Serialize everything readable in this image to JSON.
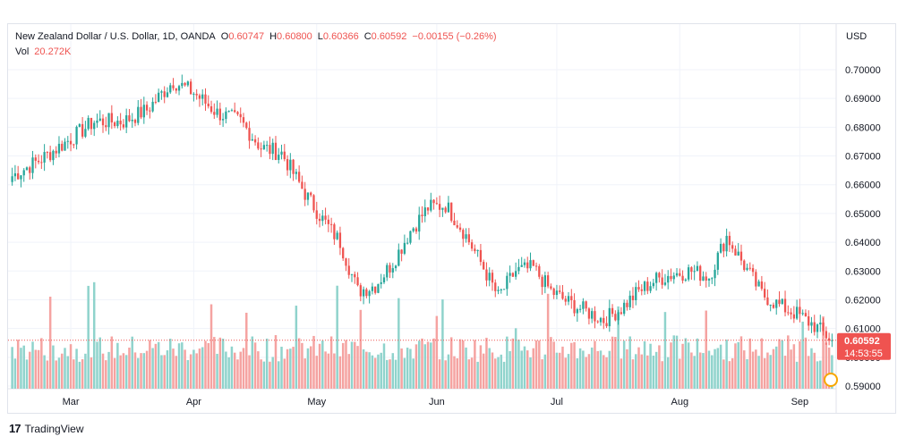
{
  "header": {
    "symbol": "New Zealand Dollar / U.S. Dollar, 1D, OANDA",
    "open_label": "O",
    "open": "0.60747",
    "high_label": "H",
    "high": "0.60800",
    "low_label": "L",
    "low": "0.60366",
    "close_label": "C",
    "close": "0.60592",
    "change": "−0.00155 (−0.26%)",
    "vol_label": "Vol",
    "vol": "20.272K"
  },
  "currency": "USD",
  "last_price_badge": {
    "price": "0.60592",
    "countdown": "14:53:55"
  },
  "brand": {
    "icon": "tradingview-logo-icon",
    "name": "TradingView"
  },
  "colors": {
    "up": "#26a69a",
    "down": "#ef5350",
    "up_vol": "#8fd3cc",
    "down_vol": "#f5a3a1",
    "grid": "#f0f3fa",
    "text": "#131722"
  },
  "chart_data": {
    "type": "candlestick",
    "title": "New Zealand Dollar / U.S. Dollar, 1D, OANDA",
    "y_axis": {
      "side": "right",
      "unit": "USD",
      "ticks": [
        "0.70000",
        "0.69000",
        "0.68000",
        "0.67000",
        "0.66000",
        "0.65000",
        "0.64000",
        "0.63000",
        "0.62000",
        "0.61000",
        "0.60000",
        "0.59000"
      ],
      "range": [
        0.5895,
        0.7045
      ]
    },
    "x_axis": {
      "months": [
        "Mar",
        "Apr",
        "May",
        "Jun",
        "Jul",
        "Aug",
        "Sep"
      ],
      "month_start_index": [
        20,
        62,
        104,
        145,
        186,
        228,
        269
      ],
      "count": 281
    },
    "grid": true,
    "last_close": 0.60592,
    "anchors": [
      [
        0,
        0.663
      ],
      [
        10,
        0.669
      ],
      [
        20,
        0.676
      ],
      [
        28,
        0.682
      ],
      [
        38,
        0.682
      ],
      [
        46,
        0.686
      ],
      [
        55,
        0.696
      ],
      [
        62,
        0.692
      ],
      [
        70,
        0.685
      ],
      [
        78,
        0.682
      ],
      [
        85,
        0.673
      ],
      [
        92,
        0.671
      ],
      [
        100,
        0.657
      ],
      [
        106,
        0.648
      ],
      [
        112,
        0.64
      ],
      [
        118,
        0.623
      ],
      [
        124,
        0.625
      ],
      [
        130,
        0.633
      ],
      [
        136,
        0.644
      ],
      [
        142,
        0.652
      ],
      [
        148,
        0.653
      ],
      [
        154,
        0.644
      ],
      [
        160,
        0.633
      ],
      [
        166,
        0.621
      ],
      [
        172,
        0.63
      ],
      [
        178,
        0.631
      ],
      [
        184,
        0.623
      ],
      [
        190,
        0.619
      ],
      [
        196,
        0.616
      ],
      [
        202,
        0.613
      ],
      [
        208,
        0.617
      ],
      [
        214,
        0.623
      ],
      [
        220,
        0.627
      ],
      [
        226,
        0.629
      ],
      [
        232,
        0.63
      ],
      [
        238,
        0.628
      ],
      [
        244,
        0.642
      ],
      [
        250,
        0.632
      ],
      [
        256,
        0.622
      ],
      [
        262,
        0.618
      ],
      [
        268,
        0.615
      ],
      [
        274,
        0.611
      ],
      [
        280,
        0.6059
      ]
    ],
    "volume_scale_note": "relative"
  }
}
